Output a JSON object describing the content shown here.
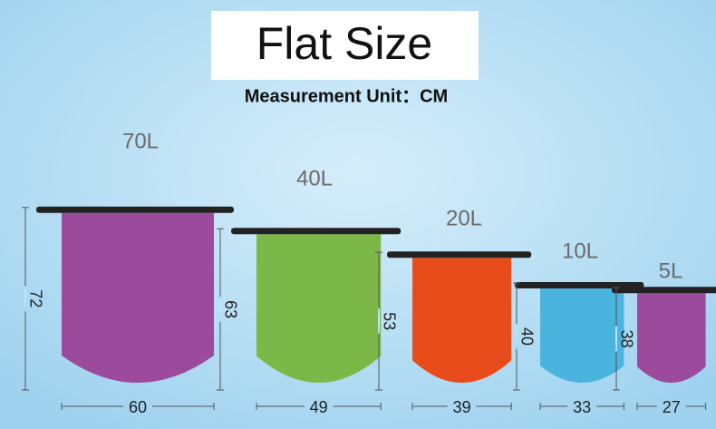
{
  "header": {
    "title": "Flat Size",
    "subtitle": "Measurement Unit：CM"
  },
  "bags": [
    {
      "label": "70L",
      "height": 72,
      "width": 60,
      "color": "#9c4a9b"
    },
    {
      "label": "40L",
      "height": 63,
      "width": 49,
      "color": "#7cb847"
    },
    {
      "label": "20L",
      "height": 53,
      "width": 39,
      "color": "#e84c1b"
    },
    {
      "label": "10L",
      "height": 40,
      "width": 33,
      "color": "#4ab4de"
    },
    {
      "label": "5L",
      "height": 38,
      "width": 27,
      "color": "#9c4a9b"
    }
  ]
}
